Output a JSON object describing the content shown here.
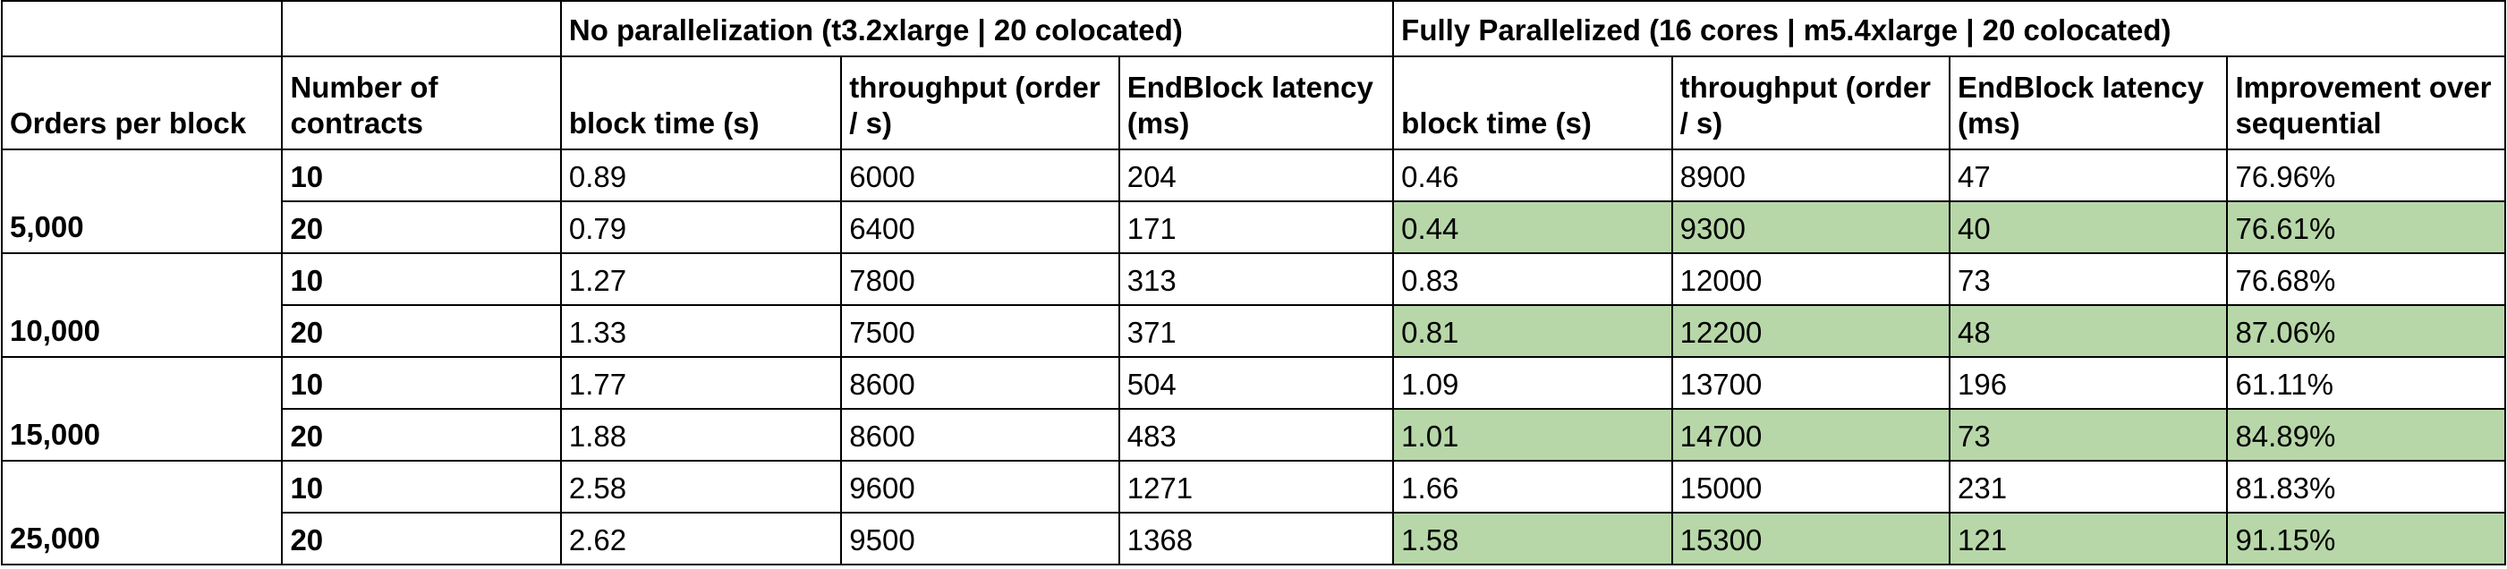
{
  "groups": {
    "no_parallel": "No parallelization (t3.2xlarge | 20 colocated)",
    "parallel": "Fully Parallelized (16 cores | m5.4xlarge | 20 colocated)"
  },
  "headers": {
    "orders_per_block": "Orders per block",
    "num_contracts": "Number of contracts",
    "np_block_time": "block time (s)",
    "np_throughput": "throughput (order / s)",
    "np_endblock": "EndBlock latency (ms)",
    "fp_block_time": "block time (s)",
    "fp_throughput": "throughput (order / s)",
    "fp_endblock": "EndBlock latency (ms)",
    "improvement": "Improvement over sequential"
  },
  "highlight_color": "#b7d7a8",
  "blocks": [
    {
      "orders": "5,000",
      "rows": [
        {
          "contracts": "10",
          "np_block": "0.89",
          "np_tp": "6000",
          "np_lat": "204",
          "fp_block": "0.46",
          "fp_tp": "8900",
          "fp_lat": "47",
          "impr": "76.96%"
        },
        {
          "contracts": "20",
          "np_block": "0.79",
          "np_tp": "6400",
          "np_lat": "171",
          "fp_block": "0.44",
          "fp_tp": "9300",
          "fp_lat": "40",
          "impr": "76.61%"
        }
      ]
    },
    {
      "orders": "10,000",
      "rows": [
        {
          "contracts": "10",
          "np_block": "1.27",
          "np_tp": "7800",
          "np_lat": "313",
          "fp_block": "0.83",
          "fp_tp": "12000",
          "fp_lat": "73",
          "impr": "76.68%"
        },
        {
          "contracts": "20",
          "np_block": "1.33",
          "np_tp": "7500",
          "np_lat": "371",
          "fp_block": "0.81",
          "fp_tp": "12200",
          "fp_lat": "48",
          "impr": "87.06%"
        }
      ]
    },
    {
      "orders": "15,000",
      "rows": [
        {
          "contracts": "10",
          "np_block": "1.77",
          "np_tp": "8600",
          "np_lat": "504",
          "fp_block": "1.09",
          "fp_tp": "13700",
          "fp_lat": "196",
          "impr": "61.11%"
        },
        {
          "contracts": "20",
          "np_block": "1.88",
          "np_tp": "8600",
          "np_lat": "483",
          "fp_block": "1.01",
          "fp_tp": "14700",
          "fp_lat": "73",
          "impr": "84.89%"
        }
      ]
    },
    {
      "orders": "25,000",
      "rows": [
        {
          "contracts": "10",
          "np_block": "2.58",
          "np_tp": "9600",
          "np_lat": "1271",
          "fp_block": "1.66",
          "fp_tp": "15000",
          "fp_lat": "231",
          "impr": "81.83%"
        },
        {
          "contracts": "20",
          "np_block": "2.62",
          "np_tp": "9500",
          "np_lat": "1368",
          "fp_block": "1.58",
          "fp_tp": "15300",
          "fp_lat": "121",
          "impr": "91.15%"
        }
      ]
    }
  ]
}
